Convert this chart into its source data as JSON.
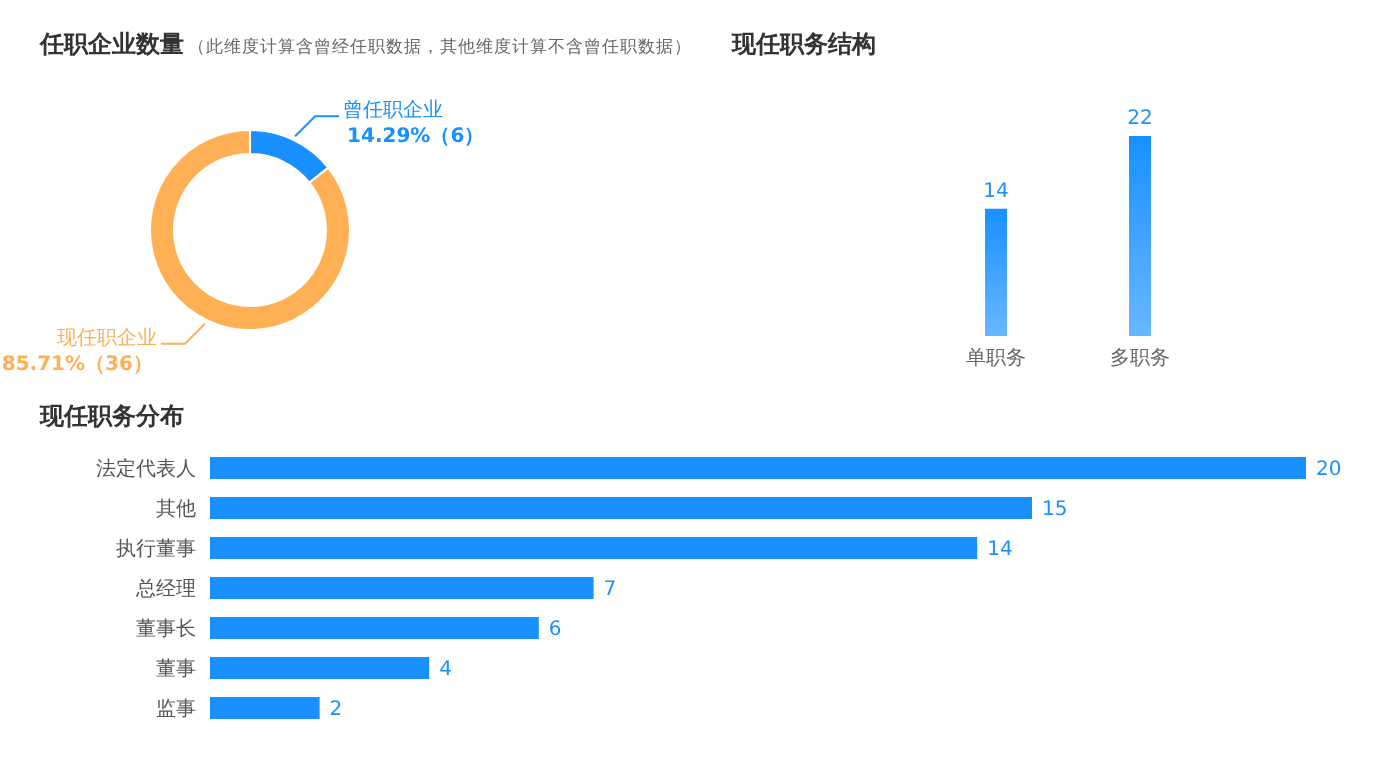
{
  "chart_data": [
    {
      "type": "donut",
      "title": "任职企业数量",
      "subtitle": "（此维度计算含曾经任职数据，其他维度计算不含曾任职数据）",
      "categories": [
        "曾任职企业",
        "现任职企业"
      ],
      "values": [
        6,
        36
      ],
      "value_labels": [
        "14.29%（6）",
        "85.71%（36）"
      ],
      "colors": [
        "#1890ff",
        "#ffb054"
      ],
      "legend": false
    },
    {
      "type": "bar",
      "title": "现任职务结构",
      "categories": [
        "单职务",
        "多职务"
      ],
      "values": [
        14,
        22
      ],
      "color": "#1890ff",
      "data_labels": true
    },
    {
      "type": "bar",
      "orientation": "horizontal",
      "title": "现任职务分布",
      "categories": [
        "法定代表人",
        "其他",
        "执行董事",
        "总经理",
        "董事长",
        "董事",
        "监事"
      ],
      "values": [
        20,
        15,
        14,
        7,
        6,
        4,
        2
      ],
      "color": "#1890ff",
      "data_labels": true
    }
  ]
}
